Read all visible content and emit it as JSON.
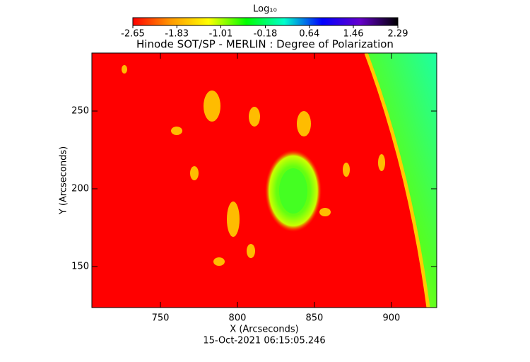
{
  "chart_data": {
    "type": "image",
    "title": "Hinode SOT/SP - MERLIN : Degree of Polarization",
    "x_label": "X (Arcseconds)",
    "y_label": "Y (Arcseconds)",
    "footer": "15-Oct-2021 06:15:05.246",
    "colorbar": {
      "label": "Log₁₀",
      "lim": [
        -2.65,
        2.29
      ],
      "ticks": [
        -2.65,
        -1.83,
        -1.01,
        -0.18,
        0.64,
        1.46,
        2.29
      ],
      "colors": [
        "#ff0000",
        "#ff9900",
        "#ffff00",
        "#00ff00",
        "#00ffcc",
        "#0000ff",
        "#6600cc",
        "#000000"
      ]
    },
    "xlim": [
      705.5,
      929.4
    ],
    "xticks": [
      750,
      800,
      850,
      900
    ],
    "ylim": [
      123.6,
      287.3
    ],
    "yticks": [
      150,
      200,
      250
    ]
  }
}
